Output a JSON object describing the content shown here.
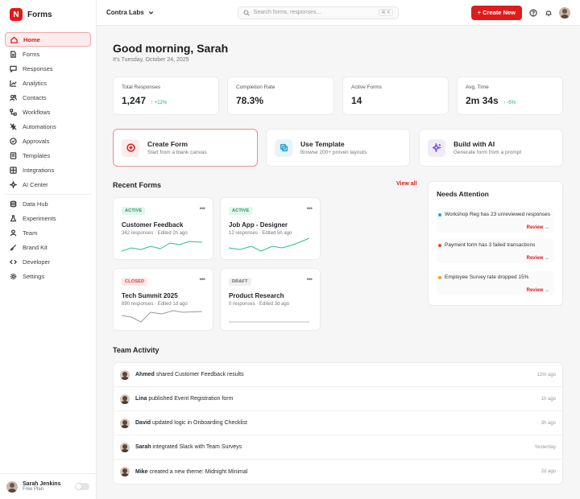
{
  "brand": {
    "logo": "N",
    "name": "Forms"
  },
  "sidebar": {
    "items": [
      {
        "label": "Home",
        "icon": "home-icon"
      },
      {
        "label": "Forms",
        "icon": "file-icon"
      },
      {
        "label": "Responses",
        "icon": "message-icon"
      },
      {
        "label": "Analytics",
        "icon": "chart-icon"
      },
      {
        "label": "Contacts",
        "icon": "users-icon"
      },
      {
        "label": "Workflows",
        "icon": "workflow-icon"
      },
      {
        "label": "Automations",
        "icon": "zap-off-icon"
      },
      {
        "label": "Approvals",
        "icon": "check-circle-icon"
      },
      {
        "label": "Templates",
        "icon": "template-icon"
      },
      {
        "label": "Integrations",
        "icon": "grid-icon"
      },
      {
        "label": "AI Center",
        "icon": "sparkle-icon"
      },
      {
        "label": "Data Hub",
        "icon": "database-icon"
      },
      {
        "label": "Experiments",
        "icon": "flask-icon"
      },
      {
        "label": "Team",
        "icon": "team-icon"
      },
      {
        "label": "Brand Kit",
        "icon": "brush-icon"
      },
      {
        "label": "Developer",
        "icon": "code-icon"
      },
      {
        "label": "Settings",
        "icon": "gear-icon"
      }
    ],
    "user": {
      "name": "Sarah Jenkins",
      "plan": "Free Plan"
    }
  },
  "topbar": {
    "workspace": "Contra Labs",
    "search_placeholder": "Search forms, responses...",
    "search_shortcut": "⌘ K",
    "create_label": "+ Create New"
  },
  "header": {
    "greeting": "Good morning, Sarah",
    "date": "It's Tuesday, October 24, 2025"
  },
  "stats": [
    {
      "label": "Total Responses",
      "value": "1,247",
      "delta": "+12%"
    },
    {
      "label": "Completion Rate",
      "value": "78.3%",
      "delta": ""
    },
    {
      "label": "Active Forms",
      "value": "14",
      "delta": ""
    },
    {
      "label": "Avg. Time",
      "value": "2m 34s",
      "delta": "-5%"
    }
  ],
  "actions": [
    {
      "title": "Create Form",
      "subtitle": "Start from a blank canvas"
    },
    {
      "title": "Use Template",
      "subtitle": "Browse 200+ proven layouts"
    },
    {
      "title": "Build with AI",
      "subtitle": "Generate form from a prompt"
    }
  ],
  "recent": {
    "title": "Recent Forms",
    "view_all": "View all",
    "forms": [
      {
        "status": "ACTIVE",
        "title": "Customer Feedback",
        "meta": "342 responses · Edited 2h ago"
      },
      {
        "status": "ACTIVE",
        "title": "Job App - Designer",
        "meta": "12 responses · Edited 5h ago"
      },
      {
        "status": "CLOSED",
        "title": "Tech Summit 2025",
        "meta": "890 responses · Edited 1d ago"
      },
      {
        "status": "DRAFT",
        "title": "Product Research",
        "meta": "0 responses · Edited 3d ago"
      }
    ]
  },
  "attention": {
    "title": "Needs Attention",
    "items": [
      {
        "text": "Workshop Reg has 23 unreviewed responses",
        "action": "Review →",
        "color": "#1fa9b8"
      },
      {
        "text": "Payment form has 3 failed transactions",
        "action": "Review →",
        "color": "#e04a2b"
      },
      {
        "text": "Employee Survey rate dropped 15%",
        "action": "Review →",
        "color": "#f0a020"
      }
    ]
  },
  "activity": {
    "title": "Team Activity",
    "rows": [
      {
        "name": "Ahmed",
        "text": "shared Customer Feedback results",
        "time": "12m ago"
      },
      {
        "name": "Lina",
        "text": "published Event Registration form",
        "time": "1h ago"
      },
      {
        "name": "David",
        "text": "updated logic in Onboarding Checklist",
        "time": "3h ago"
      },
      {
        "name": "Sarah",
        "text": "integrated Slack with Team Surveys",
        "time": "Yesterday"
      },
      {
        "name": "Mike",
        "text": "created a new theme: Midnight Minimal",
        "time": "2d ago"
      }
    ]
  },
  "colors": {
    "accent": "#e01b1b",
    "green": "#1fa971"
  }
}
